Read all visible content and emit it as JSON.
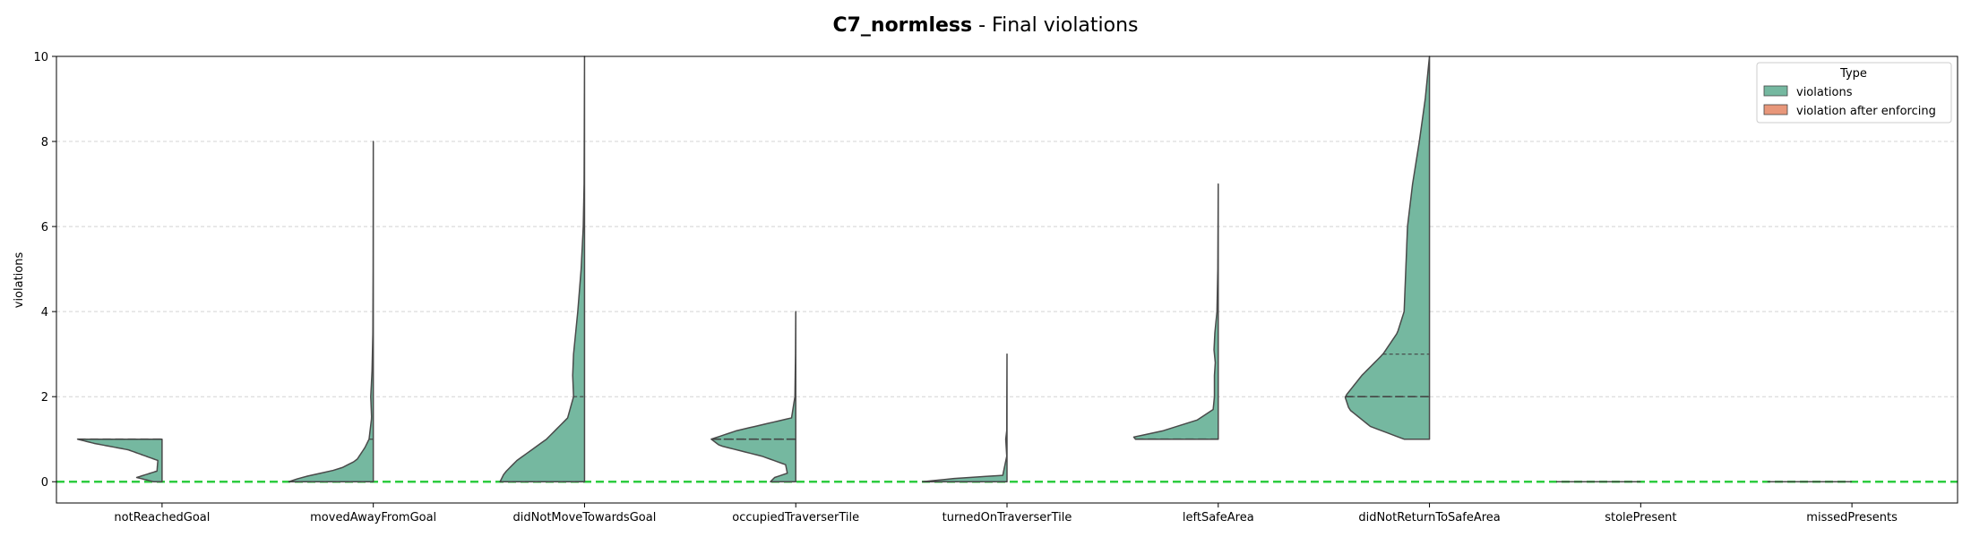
{
  "chart_data": {
    "type": "violin",
    "title_bold": "C7_normless",
    "title_rest": " - Final violations",
    "xlabel": "",
    "ylabel": "violations",
    "ylim": [
      -0.5,
      10
    ],
    "yticks": [
      0,
      2,
      4,
      6,
      8,
      10
    ],
    "grid": "y-dashed",
    "baseline": {
      "value": 0,
      "color": "#2ecc40"
    },
    "legend": {
      "title": "Type",
      "placement": "top-right",
      "entries": [
        {
          "label": "violations",
          "color": "#75b8a0"
        },
        {
          "label": "violation after enforcing",
          "color": "#e8977a"
        }
      ]
    },
    "categories": [
      "notReachedGoal",
      "movedAwayFromGoal",
      "didNotMoveTowardsGoal",
      "occupiedTraverserTile",
      "turnedOnTraverserTile",
      "leftSafeArea",
      "didNotReturnToSafeArea",
      "stolePresent",
      "missedPresents"
    ],
    "series": [
      {
        "name": "violations",
        "color": "#75b8a0",
        "distributions": [
          {
            "min": 0,
            "max": 1,
            "q1": 1,
            "median": 1,
            "q3": 1,
            "density": [
              [
                0,
                0.1
              ],
              [
                0.1,
                0.3
              ],
              [
                0.25,
                0.06
              ],
              [
                0.5,
                0.05
              ],
              [
                0.75,
                0.4
              ],
              [
                0.9,
                0.8
              ],
              [
                1,
                1.0
              ]
            ]
          },
          {
            "min": 0,
            "max": 8,
            "q1": 0,
            "median": 0,
            "q3": 1,
            "density": [
              [
                0,
                1.0
              ],
              [
                0.1,
                0.85
              ],
              [
                0.3,
                0.4
              ],
              [
                0.5,
                0.2
              ],
              [
                0.8,
                0.1
              ],
              [
                1,
                0.05
              ],
              [
                1.5,
                0.02
              ],
              [
                2,
                0.03
              ],
              [
                2.6,
                0.015
              ],
              [
                3.5,
                0.005
              ],
              [
                5,
                0.002
              ],
              [
                8,
                0
              ]
            ]
          },
          {
            "min": 0,
            "max": 10,
            "q1": 0,
            "median": 0,
            "q3": 2,
            "density": [
              [
                0,
                1.0
              ],
              [
                0.2,
                0.95
              ],
              [
                0.5,
                0.8
              ],
              [
                1,
                0.45
              ],
              [
                1.5,
                0.2
              ],
              [
                2,
                0.13
              ],
              [
                2.5,
                0.14
              ],
              [
                3,
                0.13
              ],
              [
                4,
                0.08
              ],
              [
                5,
                0.04
              ],
              [
                6,
                0.015
              ],
              [
                7,
                0.005
              ],
              [
                8,
                0.003
              ],
              [
                10,
                0
              ]
            ]
          },
          {
            "min": 0,
            "max": 4,
            "q1": 1,
            "median": 1,
            "q3": 1,
            "density": [
              [
                0,
                0.3
              ],
              [
                0.1,
                0.25
              ],
              [
                0.2,
                0.1
              ],
              [
                0.4,
                0.12
              ],
              [
                0.6,
                0.4
              ],
              [
                0.85,
                0.9
              ],
              [
                1,
                1.0
              ],
              [
                1.2,
                0.7
              ],
              [
                1.5,
                0.05
              ],
              [
                2,
                0.01
              ],
              [
                3,
                0.003
              ],
              [
                4,
                0
              ]
            ]
          },
          {
            "min": 0,
            "max": 3,
            "q1": 0,
            "median": 0,
            "q3": 0,
            "density": [
              [
                0,
                1.0
              ],
              [
                0.08,
                0.6
              ],
              [
                0.15,
                0.05
              ],
              [
                0.6,
                0.003
              ],
              [
                1,
                0.015
              ],
              [
                1.2,
                0.003
              ],
              [
                2,
                0.002
              ],
              [
                3,
                0
              ]
            ]
          },
          {
            "min": 1,
            "max": 7,
            "q1": 1,
            "median": 1,
            "q3": 1,
            "density": [
              [
                1,
                0.98
              ],
              [
                1.05,
                1.0
              ],
              [
                1.2,
                0.65
              ],
              [
                1.45,
                0.25
              ],
              [
                1.7,
                0.06
              ],
              [
                2,
                0.045
              ],
              [
                2.5,
                0.045
              ],
              [
                2.8,
                0.035
              ],
              [
                3.1,
                0.05
              ],
              [
                3.5,
                0.04
              ],
              [
                4,
                0.015
              ],
              [
                5,
                0.005
              ],
              [
                7,
                0
              ]
            ]
          },
          {
            "min": 1,
            "max": 10,
            "q1": 2,
            "median": 2,
            "q3": 3,
            "density": [
              [
                1,
                0.3
              ],
              [
                1.3,
                0.7
              ],
              [
                1.7,
                0.95
              ],
              [
                2,
                1.0
              ],
              [
                2.5,
                0.8
              ],
              [
                3,
                0.55
              ],
              [
                3.5,
                0.38
              ],
              [
                4,
                0.3
              ],
              [
                5,
                0.28
              ],
              [
                6,
                0.26
              ],
              [
                7,
                0.2
              ],
              [
                8,
                0.12
              ],
              [
                9,
                0.05
              ],
              [
                10,
                0
              ]
            ]
          },
          {
            "min": 0,
            "max": 0,
            "q1": 0,
            "median": 0,
            "q3": 0,
            "density": [
              [
                0,
                1.0
              ]
            ]
          },
          {
            "min": 0,
            "max": 0,
            "q1": 0,
            "median": 0,
            "q3": 0,
            "density": [
              [
                0,
                1.0
              ]
            ]
          }
        ]
      }
    ]
  }
}
